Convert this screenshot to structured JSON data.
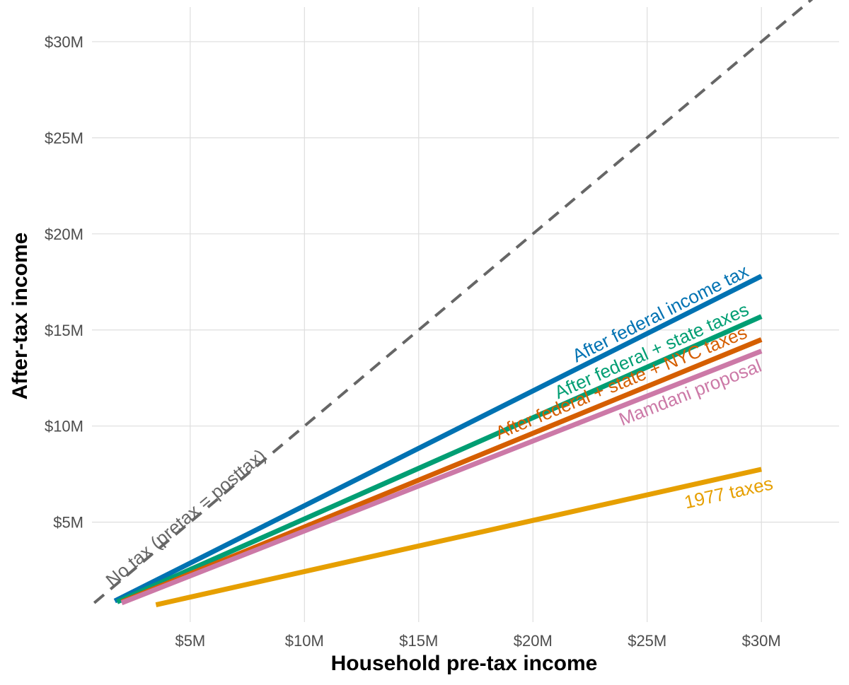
{
  "chart_data": {
    "type": "line",
    "xlabel": "Household pre-tax income",
    "ylabel": "After-tax income",
    "xlim": [
      0.7,
      33.4
    ],
    "ylim": [
      -0.2,
      31.8
    ],
    "x_ticks": [
      5,
      10,
      15,
      20,
      25,
      30
    ],
    "x_tick_labels": [
      "$5M",
      "$10M",
      "$15M",
      "$20M",
      "$25M",
      "$30M"
    ],
    "y_ticks": [
      5,
      10,
      15,
      20,
      25,
      30
    ],
    "y_tick_labels": [
      "$5M",
      "$10M",
      "$15M",
      "$20M",
      "$25M",
      "$30M"
    ],
    "grid": true,
    "legend": "none (direct labels)",
    "series": [
      {
        "name": "No tax (pretax = posttax)",
        "color": "#666666",
        "style": "dashed",
        "x": [
          0.8,
          33.3
        ],
        "y": [
          0.8,
          33.3
        ]
      },
      {
        "name": "After federal income tax",
        "color": "#0072B2",
        "style": "solid",
        "x": [
          1.7,
          30
        ],
        "y": [
          0.9,
          17.8
        ]
      },
      {
        "name": "After federal + state taxes",
        "color": "#009E73",
        "style": "solid",
        "x": [
          1.8,
          30
        ],
        "y": [
          0.85,
          15.7
        ]
      },
      {
        "name": "After federal + state + NYC taxes",
        "color": "#D55E00",
        "style": "solid",
        "x": [
          2.0,
          30
        ],
        "y": [
          0.85,
          14.5
        ]
      },
      {
        "name": "Mamdani proposal",
        "color": "#CC79A7",
        "style": "solid",
        "x": [
          2.0,
          30
        ],
        "y": [
          0.8,
          13.9
        ]
      },
      {
        "name": "1977 taxes",
        "color": "#E69F00",
        "style": "solid",
        "x": [
          3.5,
          30
        ],
        "y": [
          0.7,
          7.75
        ]
      }
    ],
    "annotations": [
      {
        "text": "No tax (pretax = posttax)",
        "x": 1.6,
        "y": 1.6,
        "color": "#666666"
      },
      {
        "text": "After federal income tax",
        "x": 21.9,
        "y": 13.3,
        "color": "#0072B2"
      },
      {
        "text": "After federal + state taxes",
        "x": 21.1,
        "y": 11.4,
        "color": "#009E73"
      },
      {
        "text": "After federal + state + NYC taxes",
        "x": 18.5,
        "y": 9.3,
        "color": "#D55E00"
      },
      {
        "text": "Mamdani proposal",
        "x": 23.9,
        "y": 10.0,
        "color": "#CC79A7"
      },
      {
        "text": "1977 taxes",
        "x": 26.7,
        "y": 5.7,
        "color": "#E69F00"
      }
    ]
  }
}
